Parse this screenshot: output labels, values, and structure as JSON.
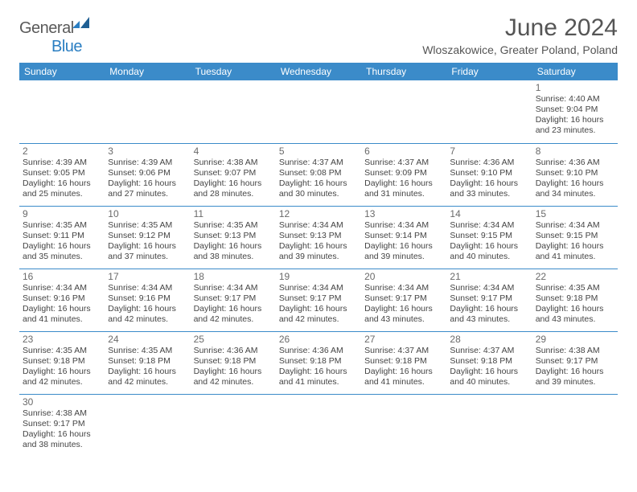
{
  "brand": {
    "part1": "General",
    "part2": "Blue"
  },
  "title": "June 2024",
  "location": "Wloszakowice, Greater Poland, Poland",
  "colors": {
    "header_bg": "#3b8bc9",
    "header_text": "#ffffff",
    "cell_border": "#3b8bc9",
    "brand_gray": "#5a5a5a",
    "brand_blue": "#2a7ec2",
    "text": "#444444",
    "daynum": "#6a6a6a",
    "background": "#ffffff"
  },
  "typography": {
    "title_fontsize": 30,
    "location_fontsize": 14,
    "header_fontsize": 12,
    "daynum_fontsize": 12,
    "info_fontsize": 10.5
  },
  "weekdays": [
    "Sunday",
    "Monday",
    "Tuesday",
    "Wednesday",
    "Thursday",
    "Friday",
    "Saturday"
  ],
  "weeks": [
    [
      null,
      null,
      null,
      null,
      null,
      null,
      {
        "n": "1",
        "sr": "Sunrise: 4:40 AM",
        "ss": "Sunset: 9:04 PM",
        "d1": "Daylight: 16 hours",
        "d2": "and 23 minutes."
      }
    ],
    [
      {
        "n": "2",
        "sr": "Sunrise: 4:39 AM",
        "ss": "Sunset: 9:05 PM",
        "d1": "Daylight: 16 hours",
        "d2": "and 25 minutes."
      },
      {
        "n": "3",
        "sr": "Sunrise: 4:39 AM",
        "ss": "Sunset: 9:06 PM",
        "d1": "Daylight: 16 hours",
        "d2": "and 27 minutes."
      },
      {
        "n": "4",
        "sr": "Sunrise: 4:38 AM",
        "ss": "Sunset: 9:07 PM",
        "d1": "Daylight: 16 hours",
        "d2": "and 28 minutes."
      },
      {
        "n": "5",
        "sr": "Sunrise: 4:37 AM",
        "ss": "Sunset: 9:08 PM",
        "d1": "Daylight: 16 hours",
        "d2": "and 30 minutes."
      },
      {
        "n": "6",
        "sr": "Sunrise: 4:37 AM",
        "ss": "Sunset: 9:09 PM",
        "d1": "Daylight: 16 hours",
        "d2": "and 31 minutes."
      },
      {
        "n": "7",
        "sr": "Sunrise: 4:36 AM",
        "ss": "Sunset: 9:10 PM",
        "d1": "Daylight: 16 hours",
        "d2": "and 33 minutes."
      },
      {
        "n": "8",
        "sr": "Sunrise: 4:36 AM",
        "ss": "Sunset: 9:10 PM",
        "d1": "Daylight: 16 hours",
        "d2": "and 34 minutes."
      }
    ],
    [
      {
        "n": "9",
        "sr": "Sunrise: 4:35 AM",
        "ss": "Sunset: 9:11 PM",
        "d1": "Daylight: 16 hours",
        "d2": "and 35 minutes."
      },
      {
        "n": "10",
        "sr": "Sunrise: 4:35 AM",
        "ss": "Sunset: 9:12 PM",
        "d1": "Daylight: 16 hours",
        "d2": "and 37 minutes."
      },
      {
        "n": "11",
        "sr": "Sunrise: 4:35 AM",
        "ss": "Sunset: 9:13 PM",
        "d1": "Daylight: 16 hours",
        "d2": "and 38 minutes."
      },
      {
        "n": "12",
        "sr": "Sunrise: 4:34 AM",
        "ss": "Sunset: 9:13 PM",
        "d1": "Daylight: 16 hours",
        "d2": "and 39 minutes."
      },
      {
        "n": "13",
        "sr": "Sunrise: 4:34 AM",
        "ss": "Sunset: 9:14 PM",
        "d1": "Daylight: 16 hours",
        "d2": "and 39 minutes."
      },
      {
        "n": "14",
        "sr": "Sunrise: 4:34 AM",
        "ss": "Sunset: 9:15 PM",
        "d1": "Daylight: 16 hours",
        "d2": "and 40 minutes."
      },
      {
        "n": "15",
        "sr": "Sunrise: 4:34 AM",
        "ss": "Sunset: 9:15 PM",
        "d1": "Daylight: 16 hours",
        "d2": "and 41 minutes."
      }
    ],
    [
      {
        "n": "16",
        "sr": "Sunrise: 4:34 AM",
        "ss": "Sunset: 9:16 PM",
        "d1": "Daylight: 16 hours",
        "d2": "and 41 minutes."
      },
      {
        "n": "17",
        "sr": "Sunrise: 4:34 AM",
        "ss": "Sunset: 9:16 PM",
        "d1": "Daylight: 16 hours",
        "d2": "and 42 minutes."
      },
      {
        "n": "18",
        "sr": "Sunrise: 4:34 AM",
        "ss": "Sunset: 9:17 PM",
        "d1": "Daylight: 16 hours",
        "d2": "and 42 minutes."
      },
      {
        "n": "19",
        "sr": "Sunrise: 4:34 AM",
        "ss": "Sunset: 9:17 PM",
        "d1": "Daylight: 16 hours",
        "d2": "and 42 minutes."
      },
      {
        "n": "20",
        "sr": "Sunrise: 4:34 AM",
        "ss": "Sunset: 9:17 PM",
        "d1": "Daylight: 16 hours",
        "d2": "and 43 minutes."
      },
      {
        "n": "21",
        "sr": "Sunrise: 4:34 AM",
        "ss": "Sunset: 9:17 PM",
        "d1": "Daylight: 16 hours",
        "d2": "and 43 minutes."
      },
      {
        "n": "22",
        "sr": "Sunrise: 4:35 AM",
        "ss": "Sunset: 9:18 PM",
        "d1": "Daylight: 16 hours",
        "d2": "and 43 minutes."
      }
    ],
    [
      {
        "n": "23",
        "sr": "Sunrise: 4:35 AM",
        "ss": "Sunset: 9:18 PM",
        "d1": "Daylight: 16 hours",
        "d2": "and 42 minutes."
      },
      {
        "n": "24",
        "sr": "Sunrise: 4:35 AM",
        "ss": "Sunset: 9:18 PM",
        "d1": "Daylight: 16 hours",
        "d2": "and 42 minutes."
      },
      {
        "n": "25",
        "sr": "Sunrise: 4:36 AM",
        "ss": "Sunset: 9:18 PM",
        "d1": "Daylight: 16 hours",
        "d2": "and 42 minutes."
      },
      {
        "n": "26",
        "sr": "Sunrise: 4:36 AM",
        "ss": "Sunset: 9:18 PM",
        "d1": "Daylight: 16 hours",
        "d2": "and 41 minutes."
      },
      {
        "n": "27",
        "sr": "Sunrise: 4:37 AM",
        "ss": "Sunset: 9:18 PM",
        "d1": "Daylight: 16 hours",
        "d2": "and 41 minutes."
      },
      {
        "n": "28",
        "sr": "Sunrise: 4:37 AM",
        "ss": "Sunset: 9:18 PM",
        "d1": "Daylight: 16 hours",
        "d2": "and 40 minutes."
      },
      {
        "n": "29",
        "sr": "Sunrise: 4:38 AM",
        "ss": "Sunset: 9:17 PM",
        "d1": "Daylight: 16 hours",
        "d2": "and 39 minutes."
      }
    ],
    [
      {
        "n": "30",
        "sr": "Sunrise: 4:38 AM",
        "ss": "Sunset: 9:17 PM",
        "d1": "Daylight: 16 hours",
        "d2": "and 38 minutes."
      },
      null,
      null,
      null,
      null,
      null,
      null
    ]
  ]
}
